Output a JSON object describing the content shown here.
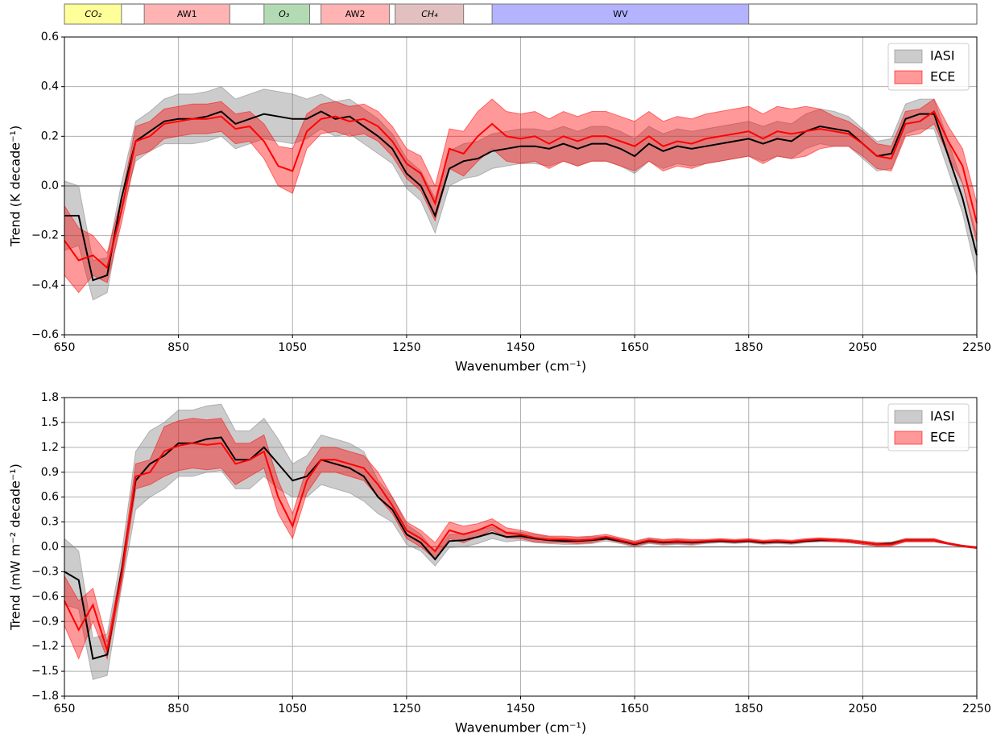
{
  "regions": [
    {
      "label": "CO₂",
      "italic": true,
      "start": 650,
      "end": 750,
      "color": "#ffff99"
    },
    {
      "label": "AW1",
      "italic": false,
      "start": 790,
      "end": 940,
      "color": "#ffb3b3"
    },
    {
      "label": "O₃",
      "italic": true,
      "start": 1000,
      "end": 1080,
      "color": "#b3dbb3"
    },
    {
      "label": "AW2",
      "italic": false,
      "start": 1100,
      "end": 1220,
      "color": "#ffb3b3"
    },
    {
      "label": "CH₄",
      "italic": true,
      "start": 1230,
      "end": 1350,
      "color": "#e3c0c0"
    },
    {
      "label": "WV",
      "italic": false,
      "start": 1400,
      "end": 1850,
      "color": "#b3b3ff"
    }
  ],
  "chart_data": [
    {
      "type": "line",
      "xlabel": "Wavenumber (cm⁻¹)",
      "ylabel": "Trend (K decade⁻¹)",
      "xlim": [
        650,
        2250
      ],
      "ylim": [
        -0.6,
        0.6
      ],
      "xticks": [
        650,
        850,
        1050,
        1250,
        1450,
        1650,
        1850,
        2050,
        2250
      ],
      "yticks": [
        {
          "value": -0.6,
          "label": "−0.6"
        },
        {
          "value": -0.4,
          "label": "−0.4"
        },
        {
          "value": -0.2,
          "label": "−0.2"
        },
        {
          "value": 0,
          "label": "0.0"
        },
        0.2,
        0.4,
        0.6
      ],
      "grid": true,
      "zero_line": true,
      "legend": "upper right",
      "x": [
        650,
        675,
        700,
        725,
        750,
        775,
        800,
        825,
        850,
        875,
        900,
        925,
        950,
        975,
        1000,
        1025,
        1050,
        1075,
        1100,
        1125,
        1150,
        1175,
        1200,
        1225,
        1250,
        1275,
        1300,
        1325,
        1350,
        1375,
        1400,
        1425,
        1450,
        1475,
        1500,
        1525,
        1550,
        1575,
        1600,
        1625,
        1650,
        1675,
        1700,
        1725,
        1750,
        1775,
        1800,
        1825,
        1850,
        1875,
        1900,
        1925,
        1950,
        1975,
        2000,
        2025,
        2050,
        2075,
        2100,
        2125,
        2150,
        2175,
        2200,
        2225,
        2250
      ],
      "series": [
        {
          "name": "IASI",
          "color": "#000000",
          "band_color": "#808080",
          "values": [
            -0.12,
            -0.12,
            -0.38,
            -0.36,
            -0.05,
            0.18,
            0.22,
            0.26,
            0.27,
            0.27,
            0.28,
            0.3,
            0.25,
            0.27,
            0.29,
            0.28,
            0.27,
            0.27,
            0.3,
            0.27,
            0.28,
            0.24,
            0.2,
            0.15,
            0.05,
            0,
            -0.12,
            0.07,
            0.1,
            0.11,
            0.14,
            0.15,
            0.16,
            0.16,
            0.15,
            0.17,
            0.15,
            0.17,
            0.17,
            0.15,
            0.12,
            0.17,
            0.14,
            0.16,
            0.15,
            0.16,
            0.17,
            0.18,
            0.19,
            0.17,
            0.19,
            0.18,
            0.22,
            0.24,
            0.23,
            0.22,
            0.17,
            0.12,
            0.13,
            0.27,
            0.29,
            0.29,
            0.12,
            -0.05,
            -0.28
          ],
          "errors": [
            0.14,
            0.12,
            0.08,
            0.07,
            0.06,
            0.08,
            0.08,
            0.09,
            0.1,
            0.1,
            0.1,
            0.1,
            0.1,
            0.1,
            0.1,
            0.1,
            0.1,
            0.08,
            0.07,
            0.07,
            0.07,
            0.07,
            0.07,
            0.06,
            0.06,
            0.06,
            0.07,
            0.07,
            0.07,
            0.07,
            0.07,
            0.07,
            0.07,
            0.07,
            0.07,
            0.07,
            0.07,
            0.07,
            0.07,
            0.07,
            0.07,
            0.07,
            0.07,
            0.07,
            0.07,
            0.07,
            0.07,
            0.07,
            0.07,
            0.07,
            0.07,
            0.07,
            0.07,
            0.07,
            0.07,
            0.06,
            0.06,
            0.06,
            0.06,
            0.06,
            0.06,
            0.06,
            0.06,
            0.06,
            0.08
          ]
        },
        {
          "name": "ECE",
          "color": "#ff0000",
          "band_color": "#ff0000",
          "values": [
            -0.22,
            -0.3,
            -0.28,
            -0.33,
            -0.1,
            0.18,
            0.2,
            0.25,
            0.26,
            0.27,
            0.27,
            0.28,
            0.23,
            0.24,
            0.18,
            0.08,
            0.06,
            0.22,
            0.27,
            0.28,
            0.26,
            0.27,
            0.24,
            0.18,
            0.09,
            0.05,
            -0.07,
            0.15,
            0.13,
            0.2,
            0.25,
            0.2,
            0.19,
            0.2,
            0.17,
            0.2,
            0.18,
            0.2,
            0.2,
            0.18,
            0.16,
            0.2,
            0.16,
            0.18,
            0.17,
            0.19,
            0.2,
            0.21,
            0.22,
            0.19,
            0.22,
            0.21,
            0.22,
            0.23,
            0.22,
            0.21,
            0.17,
            0.12,
            0.11,
            0.25,
            0.26,
            0.3,
            0.18,
            0.08,
            -0.15
          ],
          "errors": [
            0.14,
            0.13,
            0.08,
            0.06,
            0.05,
            0.06,
            0.06,
            0.06,
            0.06,
            0.06,
            0.06,
            0.06,
            0.06,
            0.06,
            0.07,
            0.08,
            0.09,
            0.07,
            0.06,
            0.06,
            0.06,
            0.06,
            0.06,
            0.06,
            0.06,
            0.07,
            0.07,
            0.08,
            0.09,
            0.1,
            0.1,
            0.1,
            0.1,
            0.1,
            0.1,
            0.1,
            0.1,
            0.1,
            0.1,
            0.1,
            0.1,
            0.1,
            0.1,
            0.1,
            0.1,
            0.1,
            0.1,
            0.1,
            0.1,
            0.1,
            0.1,
            0.1,
            0.1,
            0.08,
            0.06,
            0.05,
            0.05,
            0.05,
            0.05,
            0.05,
            0.05,
            0.05,
            0.06,
            0.07,
            0.08
          ]
        }
      ]
    },
    {
      "type": "line",
      "xlabel": "Wavenumber (cm⁻¹)",
      "ylabel": "Trend (mW m⁻² decade⁻¹)",
      "xlim": [
        650,
        2250
      ],
      "ylim": [
        -1.8,
        1.8
      ],
      "xticks": [
        650,
        850,
        1050,
        1250,
        1450,
        1650,
        1850,
        2050,
        2250
      ],
      "yticks": [
        {
          "value": -1.8,
          "label": "−1.8"
        },
        {
          "value": -1.5,
          "label": "−1.5"
        },
        {
          "value": -1.2,
          "label": "−1.2"
        },
        {
          "value": -0.9,
          "label": "−0.9"
        },
        {
          "value": -0.6,
          "label": "−0.6"
        },
        {
          "value": -0.3,
          "label": "−0.3"
        },
        {
          "value": 0,
          "label": "0.0"
        },
        0.3,
        0.6,
        0.9,
        1.2,
        1.5,
        1.8
      ],
      "grid": true,
      "zero_line": true,
      "legend": "upper right",
      "x": [
        650,
        675,
        700,
        725,
        750,
        775,
        800,
        825,
        850,
        875,
        900,
        925,
        950,
        975,
        1000,
        1025,
        1050,
        1075,
        1100,
        1125,
        1150,
        1175,
        1200,
        1225,
        1250,
        1275,
        1300,
        1325,
        1350,
        1375,
        1400,
        1425,
        1450,
        1475,
        1500,
        1525,
        1550,
        1575,
        1600,
        1625,
        1650,
        1675,
        1700,
        1725,
        1750,
        1775,
        1800,
        1825,
        1850,
        1875,
        1900,
        1925,
        1950,
        1975,
        2000,
        2025,
        2050,
        2075,
        2100,
        2125,
        2150,
        2175,
        2200,
        2225,
        2250
      ],
      "series": [
        {
          "name": "IASI",
          "color": "#000000",
          "band_color": "#808080",
          "values": [
            -0.3,
            -0.4,
            -1.35,
            -1.3,
            -0.3,
            0.8,
            1,
            1.1,
            1.25,
            1.25,
            1.3,
            1.32,
            1.05,
            1.05,
            1.2,
            1,
            0.8,
            0.85,
            1.05,
            1,
            0.95,
            0.85,
            0.6,
            0.45,
            0.15,
            0.05,
            -0.15,
            0.07,
            0.08,
            0.12,
            0.17,
            0.12,
            0.13,
            0.1,
            0.08,
            0.07,
            0.07,
            0.08,
            0.1,
            0.07,
            0.03,
            0.07,
            0.05,
            0.06,
            0.05,
            0.06,
            0.07,
            0.06,
            0.07,
            0.05,
            0.06,
            0.05,
            0.07,
            0.08,
            0.08,
            0.07,
            0.05,
            0.03,
            0.04,
            0.08,
            0.08,
            0.08,
            0.04,
            0.01,
            -0.01
          ],
          "errors": [
            0.4,
            0.35,
            0.25,
            0.25,
            0.2,
            0.35,
            0.4,
            0.4,
            0.4,
            0.4,
            0.4,
            0.4,
            0.35,
            0.35,
            0.35,
            0.3,
            0.2,
            0.25,
            0.3,
            0.3,
            0.3,
            0.3,
            0.2,
            0.15,
            0.12,
            0.1,
            0.08,
            0.08,
            0.08,
            0.08,
            0.07,
            0.06,
            0.05,
            0.05,
            0.04,
            0.04,
            0.04,
            0.04,
            0.03,
            0.03,
            0.03,
            0.03,
            0.03,
            0.03,
            0.03,
            0.02,
            0.02,
            0.02,
            0.02,
            0.02,
            0.02,
            0.02,
            0.02,
            0.02,
            0.02,
            0.02,
            0.02,
            0.02,
            0.02,
            0.02,
            0.02,
            0.02,
            0.01,
            0.01,
            0.01
          ]
        },
        {
          "name": "ECE",
          "color": "#ff0000",
          "band_color": "#ff0000",
          "values": [
            -0.65,
            -1,
            -0.7,
            -1.25,
            -0.35,
            0.85,
            0.9,
            1.15,
            1.22,
            1.25,
            1.23,
            1.25,
            1,
            1.05,
            1.15,
            0.6,
            0.25,
            0.8,
            1.05,
            1.05,
            1,
            0.95,
            0.75,
            0.5,
            0.2,
            0.1,
            -0.05,
            0.2,
            0.15,
            0.2,
            0.27,
            0.17,
            0.15,
            0.11,
            0.09,
            0.09,
            0.08,
            0.09,
            0.12,
            0.08,
            0.04,
            0.08,
            0.06,
            0.07,
            0.06,
            0.07,
            0.08,
            0.07,
            0.08,
            0.06,
            0.07,
            0.06,
            0.08,
            0.09,
            0.08,
            0.07,
            0.05,
            0.03,
            0.03,
            0.08,
            0.08,
            0.08,
            0.04,
            0.01,
            -0.01
          ],
          "errors": [
            0.3,
            0.35,
            0.2,
            0.1,
            0.1,
            0.15,
            0.15,
            0.3,
            0.3,
            0.3,
            0.3,
            0.3,
            0.25,
            0.2,
            0.2,
            0.2,
            0.15,
            0.15,
            0.15,
            0.15,
            0.15,
            0.15,
            0.15,
            0.1,
            0.1,
            0.1,
            0.1,
            0.1,
            0.1,
            0.08,
            0.07,
            0.06,
            0.05,
            0.05,
            0.04,
            0.04,
            0.04,
            0.04,
            0.03,
            0.03,
            0.03,
            0.03,
            0.03,
            0.03,
            0.03,
            0.02,
            0.02,
            0.02,
            0.02,
            0.02,
            0.02,
            0.02,
            0.02,
            0.02,
            0.02,
            0.02,
            0.02,
            0.02,
            0.02,
            0.02,
            0.02,
            0.02,
            0.01,
            0.01,
            0.01
          ]
        }
      ]
    }
  ]
}
